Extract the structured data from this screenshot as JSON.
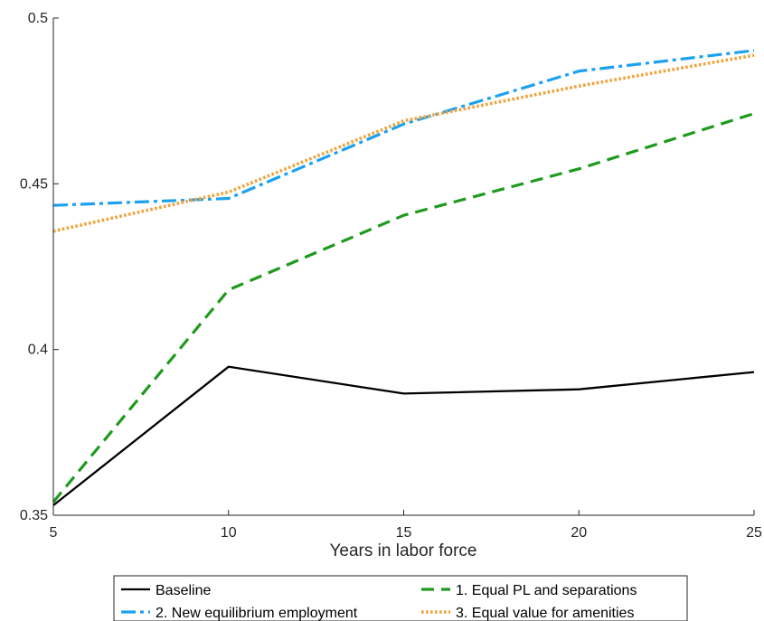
{
  "chart_data": {
    "type": "line",
    "title": "",
    "xlabel": "Years in labor force",
    "ylabel": "",
    "x": [
      5,
      10,
      15,
      20,
      25
    ],
    "xlim": [
      5,
      25
    ],
    "ylim": [
      0.35,
      0.5
    ],
    "xticks": [
      5,
      10,
      15,
      20,
      25
    ],
    "yticks": [
      0.35,
      0.4,
      0.45,
      0.5
    ],
    "xtick_labels": [
      "5",
      "10",
      "15",
      "20",
      "25"
    ],
    "ytick_labels": [
      "0.35",
      "0.4",
      "0.45",
      "0.5"
    ],
    "grid": false,
    "legend_position": "bottom",
    "series": [
      {
        "name": "Baseline",
        "color": "#000000",
        "style": "solid",
        "values": [
          0.353,
          0.3948,
          0.3867,
          0.388,
          0.3932
        ]
      },
      {
        "name": "1. Equal PL and separations",
        "color": "#1e9a1e",
        "style": "dashed",
        "values": [
          0.354,
          0.418,
          0.4405,
          0.4545,
          0.4712
        ]
      },
      {
        "name": "2. New equilibrium employment",
        "color": "#1ba1f0",
        "style": "dashdot",
        "values": [
          0.4435,
          0.4456,
          0.468,
          0.484,
          0.4902
        ]
      },
      {
        "name": "3. Equal value for amenities",
        "color": "#f2a23a",
        "style": "dotted",
        "values": [
          0.4357,
          0.4475,
          0.469,
          0.4795,
          0.4888
        ]
      }
    ]
  }
}
